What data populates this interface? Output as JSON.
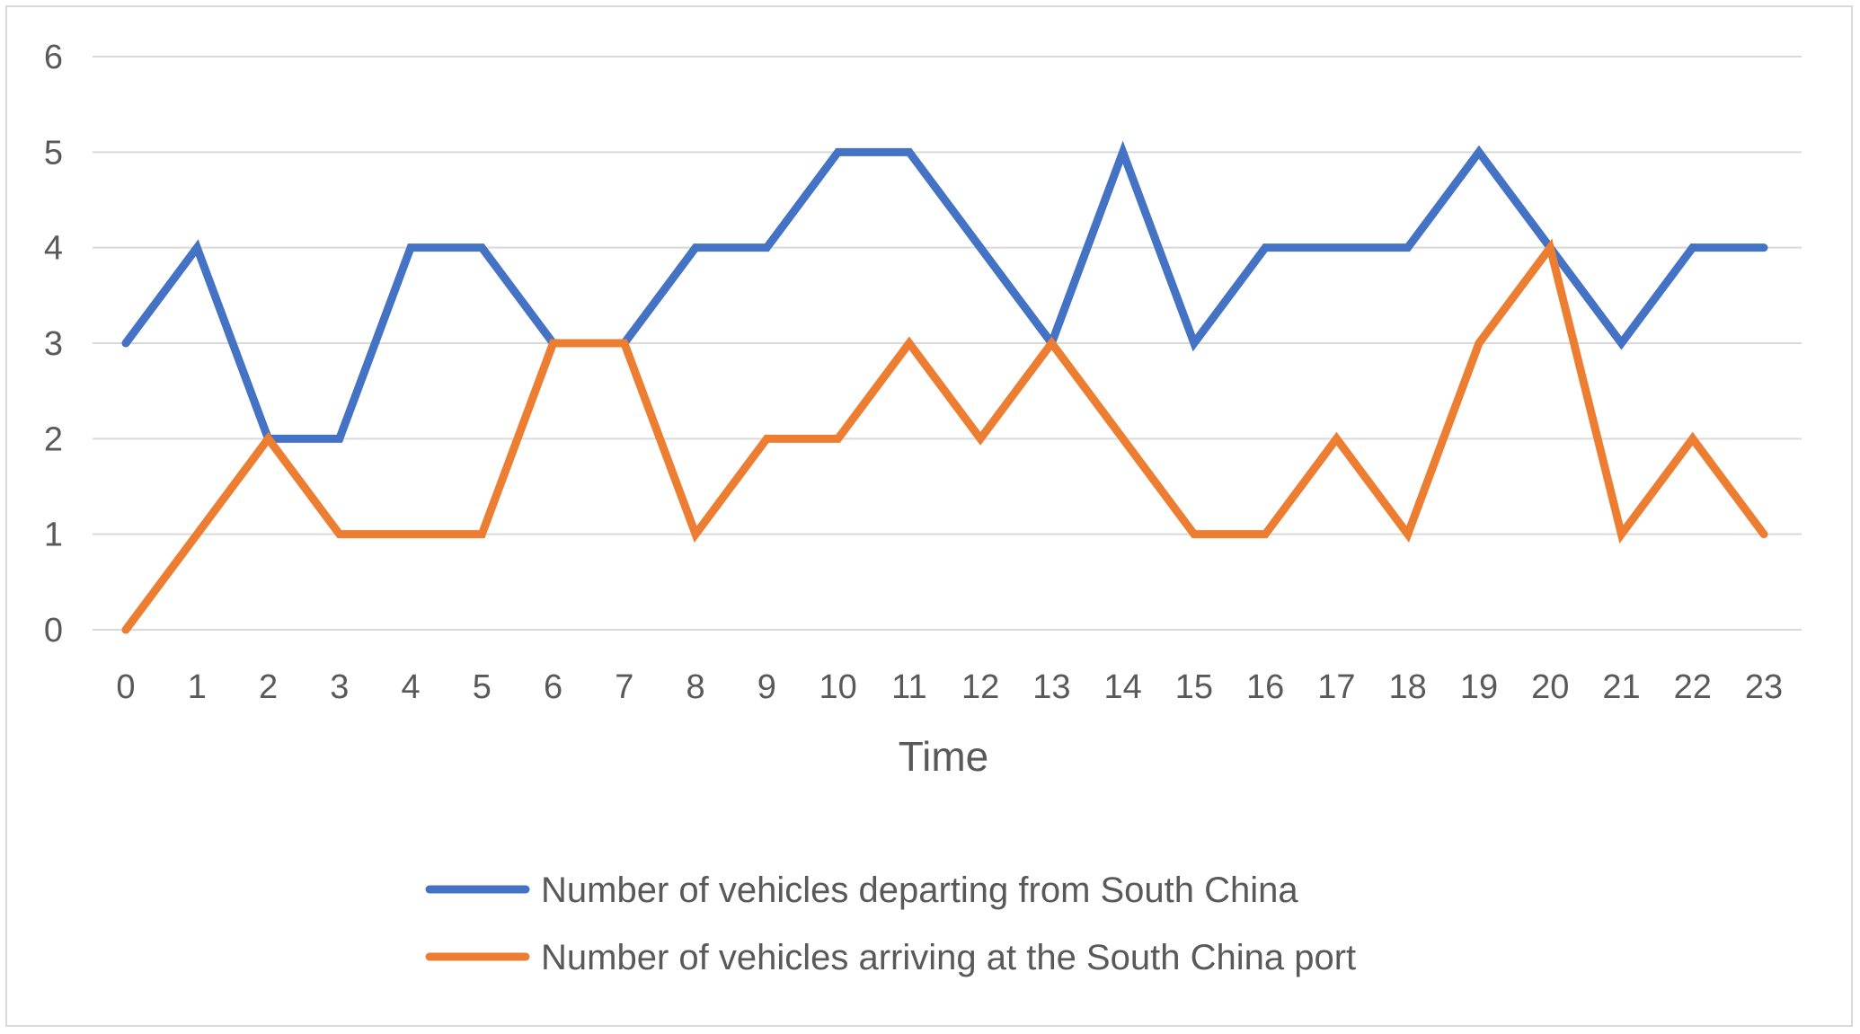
{
  "chart_data": {
    "type": "line",
    "title": "",
    "xlabel": "Time",
    "ylabel": "",
    "x": [
      "0",
      "1",
      "2",
      "3",
      "4",
      "5",
      "6",
      "7",
      "8",
      "9",
      "10",
      "11",
      "12",
      "13",
      "14",
      "15",
      "16",
      "17",
      "18",
      "19",
      "20",
      "21",
      "22",
      "23"
    ],
    "ylim": [
      0,
      6
    ],
    "yticks": [
      "0",
      "1",
      "2",
      "3",
      "4",
      "5",
      "6"
    ],
    "grid": true,
    "legend_position": "bottom",
    "series": [
      {
        "name": "Number of vehicles departing from South China",
        "color": "#4472c4",
        "values": [
          3,
          4,
          2,
          2,
          4,
          4,
          3,
          3,
          4,
          4,
          5,
          5,
          4,
          3,
          5,
          3,
          4,
          4,
          4,
          5,
          4,
          3,
          4,
          4
        ]
      },
      {
        "name": "Number of vehicles arriving at the South China port",
        "color": "#ed7d31",
        "values": [
          0,
          1,
          2,
          1,
          1,
          1,
          3,
          3,
          1,
          2,
          2,
          3,
          2,
          3,
          2,
          1,
          1,
          2,
          1,
          3,
          4,
          1,
          2,
          1
        ]
      }
    ]
  }
}
